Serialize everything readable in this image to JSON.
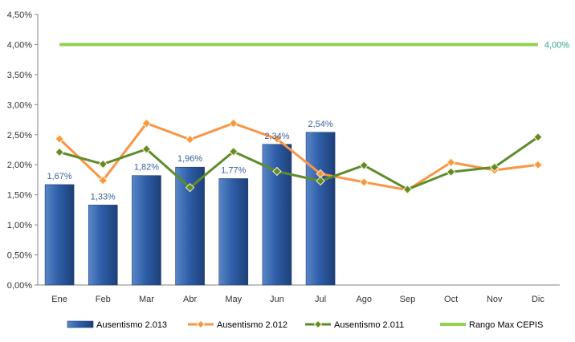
{
  "chart_data": {
    "type": "bar",
    "categories": [
      "Ene",
      "Feb",
      "Mar",
      "Abr",
      "May",
      "Jun",
      "Jul",
      "Ago",
      "Sep",
      "Oct",
      "Nov",
      "Dic"
    ],
    "y_ticks": [
      "0,00%",
      "0,50%",
      "1,00%",
      "1,50%",
      "2,00%",
      "2,50%",
      "3,00%",
      "3,50%",
      "4,00%",
      "4,50%"
    ],
    "ylim": [
      0,
      4.5
    ],
    "grid": false,
    "legend_position": "bottom",
    "series": [
      {
        "name": "Ausentismo 2.013",
        "kind": "bar",
        "color": "#2F5FA8",
        "values": [
          1.67,
          1.33,
          1.82,
          1.96,
          1.77,
          2.34,
          2.54,
          null,
          null,
          null,
          null,
          null
        ],
        "labels": [
          "1,67%",
          "1,33%",
          "1,82%",
          "1,96%",
          "1,77%",
          "2,34%",
          "2,54%",
          "",
          "",
          "",
          "",
          ""
        ]
      },
      {
        "name": "Ausentismo 2.012",
        "kind": "line",
        "color": "#F79646",
        "marker": "diamond",
        "values": [
          2.43,
          1.74,
          2.69,
          2.42,
          2.69,
          2.43,
          1.85,
          1.71,
          1.58,
          2.04,
          1.91,
          2.0
        ]
      },
      {
        "name": "Ausentismo 2.011",
        "kind": "line",
        "color": "#5E8C2B",
        "marker": "diamond",
        "values": [
          2.21,
          2.01,
          2.26,
          1.62,
          2.22,
          1.89,
          1.73,
          1.99,
          1.59,
          1.88,
          1.96,
          2.46
        ]
      },
      {
        "name": "Rango Max CEPIS",
        "kind": "line",
        "color": "#92D050",
        "values": [
          4.0,
          4.0,
          4.0,
          4.0,
          4.0,
          4.0,
          4.0,
          4.0,
          4.0,
          4.0,
          4.0,
          4.0
        ],
        "end_label": "4,00%"
      }
    ]
  }
}
